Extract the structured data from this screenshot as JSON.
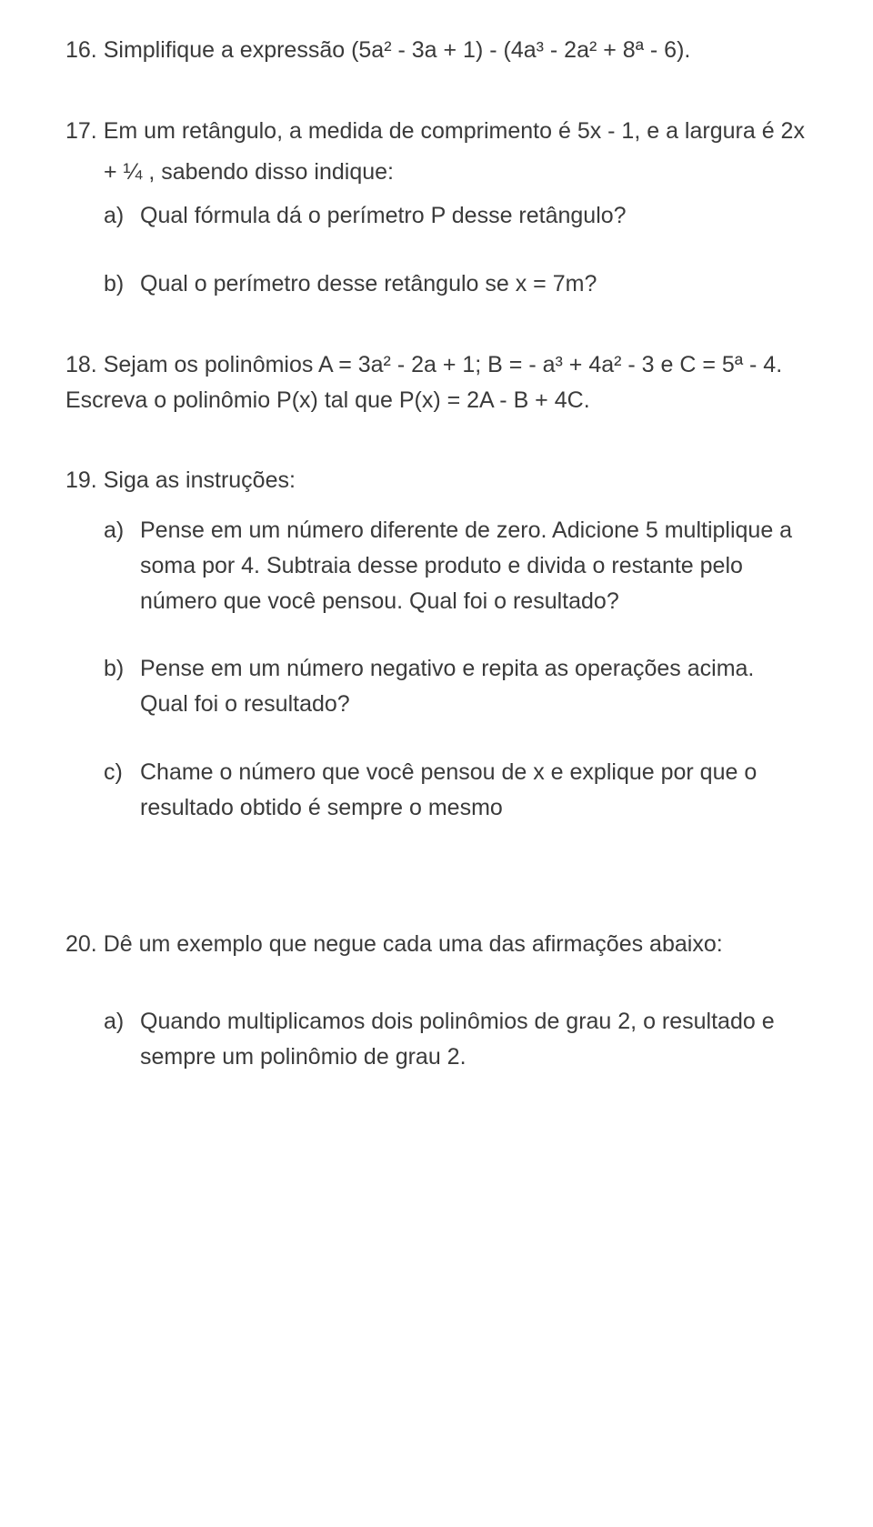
{
  "q16": {
    "num": "16.",
    "text": "Simplifique a expressão (5a² - 3a + 1) - (4a³ - 2a² + 8ª - 6)."
  },
  "q17": {
    "num": "17.",
    "text_line1": "Em um retângulo, a medida de comprimento é 5x - 1, e a largura é 2x",
    "text_line2": "+ ¼ , sabendo disso indique:",
    "a_letter": "a)",
    "a_text": "Qual fórmula dá o perímetro P desse retângulo?",
    "b_letter": "b)",
    "b_text": "Qual o perímetro desse retângulo se x = 7m?"
  },
  "q18": {
    "num": "18.",
    "line1": "Sejam os polinômios A = 3a² - 2a + 1; B = - a³ + 4a² - 3 e C = 5ª - 4.",
    "line2": "Escreva o polinômio P(x) tal que P(x) = 2A - B + 4C."
  },
  "q19": {
    "num": "19.",
    "text": "Siga as instruções:",
    "a_letter": "a)",
    "a_text": "Pense em um número diferente de zero. Adicione 5 multiplique a soma por 4. Subtraia desse produto e divida o restante pelo número que você pensou. Qual foi o resultado?",
    "b_letter": "b)",
    "b_text": "Pense em um número negativo e repita as operações acima. Qual foi o resultado?",
    "c_letter": "c)",
    "c_text": "Chame o número que você pensou de x e explique por que o resultado obtido é sempre o mesmo"
  },
  "q20": {
    "num": "20.",
    "text": "Dê um exemplo que negue cada uma das afirmações abaixo:",
    "a_letter": "a)",
    "a_text": "Quando multiplicamos dois polinômios de grau 2, o resultado e sempre um polinômio de grau 2."
  }
}
